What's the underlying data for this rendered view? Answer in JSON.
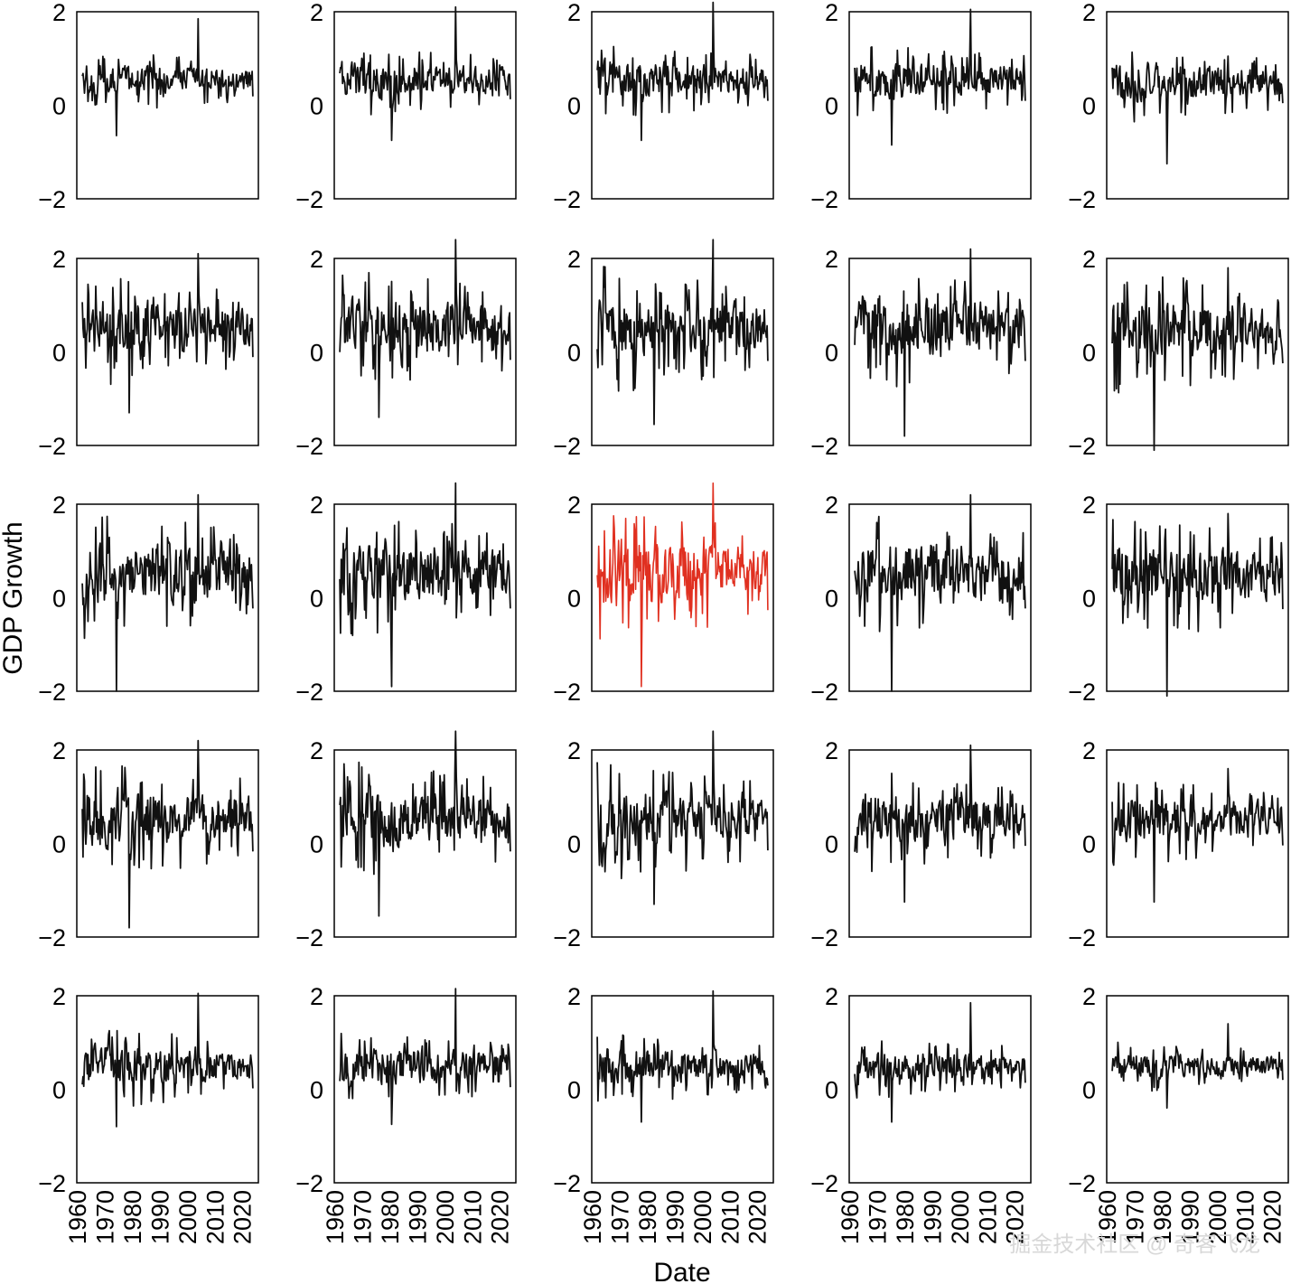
{
  "chart_data": {
    "type": "line",
    "layout": "5x5 grid of small multiples",
    "xlabel": "Date",
    "ylabel": "GDP Growth",
    "xlim": [
      1960,
      2026
    ],
    "ylim": [
      -2,
      2
    ],
    "yticks": [
      "2",
      "0",
      "−2"
    ],
    "xticks": [
      "1960",
      "1970",
      "1980",
      "1990",
      "2000",
      "2010",
      "2020"
    ],
    "x_tick_values": [
      1960,
      1970,
      1980,
      1990,
      2000,
      2010,
      2020
    ],
    "y_tick_values": [
      2,
      0,
      -2
    ],
    "series_x_start": 1962,
    "series_x_end": 2024,
    "colors": {
      "default": "#111111",
      "highlight": "#e03020"
    },
    "grid": false,
    "panels": [
      {
        "row": 0,
        "col": 0,
        "amp": 0.3,
        "mean": 0.55,
        "spike": 1.85,
        "minv": -0.65
      },
      {
        "row": 0,
        "col": 1,
        "amp": 0.35,
        "mean": 0.55,
        "spike": 2.1,
        "minv": -0.75
      },
      {
        "row": 0,
        "col": 2,
        "amp": 0.38,
        "mean": 0.55,
        "spike": 2.2,
        "minv": -0.75
      },
      {
        "row": 0,
        "col": 3,
        "amp": 0.38,
        "mean": 0.55,
        "spike": 2.05,
        "minv": -0.85
      },
      {
        "row": 0,
        "col": 4,
        "amp": 0.38,
        "mean": 0.5,
        "spike": 1.05,
        "minv": -1.25
      },
      {
        "row": 1,
        "col": 0,
        "amp": 0.55,
        "mean": 0.55,
        "spike": 2.1,
        "minv": -1.3
      },
      {
        "row": 1,
        "col": 1,
        "amp": 0.6,
        "mean": 0.55,
        "spike": 2.4,
        "minv": -1.4
      },
      {
        "row": 1,
        "col": 2,
        "amp": 0.62,
        "mean": 0.55,
        "spike": 2.4,
        "minv": -1.55
      },
      {
        "row": 1,
        "col": 3,
        "amp": 0.62,
        "mean": 0.55,
        "spike": 2.2,
        "minv": -1.8
      },
      {
        "row": 1,
        "col": 4,
        "amp": 0.62,
        "mean": 0.5,
        "spike": 1.8,
        "minv": -2.1
      },
      {
        "row": 2,
        "col": 0,
        "amp": 0.65,
        "mean": 0.55,
        "spike": 2.2,
        "minv": -2.0
      },
      {
        "row": 2,
        "col": 1,
        "amp": 0.65,
        "mean": 0.55,
        "spike": 2.45,
        "minv": -1.9
      },
      {
        "row": 2,
        "col": 2,
        "amp": 0.68,
        "mean": 0.55,
        "spike": 2.45,
        "minv": -1.9,
        "highlight": true
      },
      {
        "row": 2,
        "col": 3,
        "amp": 0.65,
        "mean": 0.55,
        "spike": 2.2,
        "minv": -2.0
      },
      {
        "row": 2,
        "col": 4,
        "amp": 0.62,
        "mean": 0.5,
        "spike": 1.8,
        "minv": -2.1
      },
      {
        "row": 3,
        "col": 0,
        "amp": 0.6,
        "mean": 0.55,
        "spike": 2.2,
        "minv": -1.8
      },
      {
        "row": 3,
        "col": 1,
        "amp": 0.6,
        "mean": 0.55,
        "spike": 2.4,
        "minv": -1.55
      },
      {
        "row": 3,
        "col": 2,
        "amp": 0.58,
        "mean": 0.55,
        "spike": 2.4,
        "minv": -1.3
      },
      {
        "row": 3,
        "col": 3,
        "amp": 0.5,
        "mean": 0.55,
        "spike": 2.1,
        "minv": -1.25
      },
      {
        "row": 3,
        "col": 4,
        "amp": 0.45,
        "mean": 0.5,
        "spike": 1.6,
        "minv": -1.25
      },
      {
        "row": 4,
        "col": 0,
        "amp": 0.4,
        "mean": 0.5,
        "spike": 2.05,
        "minv": -0.8
      },
      {
        "row": 4,
        "col": 1,
        "amp": 0.38,
        "mean": 0.5,
        "spike": 2.15,
        "minv": -0.75
      },
      {
        "row": 4,
        "col": 2,
        "amp": 0.35,
        "mean": 0.5,
        "spike": 2.1,
        "minv": -0.7
      },
      {
        "row": 4,
        "col": 3,
        "amp": 0.3,
        "mean": 0.5,
        "spike": 1.85,
        "minv": -0.7
      },
      {
        "row": 4,
        "col": 4,
        "amp": 0.25,
        "mean": 0.5,
        "spike": 1.4,
        "minv": -0.4
      }
    ]
  },
  "watermark": "掘金技术社区 @ 奇客飞龙"
}
